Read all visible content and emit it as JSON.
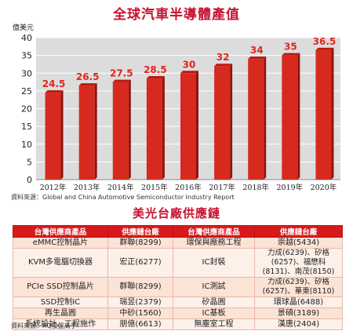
{
  "chart_data": {
    "type": "bar",
    "title": "全球汽車半導體產值",
    "ylabel": "億美元",
    "categories": [
      "2012年",
      "2013年",
      "2014年",
      "2015年",
      "2016年",
      "2017年",
      "2018年",
      "2019年",
      "2020年"
    ],
    "values": [
      24.5,
      26.5,
      27.5,
      28.5,
      30,
      32,
      34,
      35,
      36.5
    ],
    "data_labels": [
      "24.5",
      "26.5",
      "27.5",
      "28.5",
      "30",
      "32",
      "34",
      "35",
      "36.5"
    ],
    "yticks": [
      0,
      5,
      10,
      15,
      20,
      25,
      30,
      35,
      40
    ],
    "ylim": [
      0,
      40
    ],
    "grid": true,
    "colors": {
      "bar": "#d62a1e",
      "bar_dark": "#8f130d",
      "label": "#e1261c",
      "plot_bg": "#dcdcdc"
    }
  },
  "chart_source": "資料來源：Global and China Automotive Semiconductor Industry Report",
  "supply_chain": {
    "title": "美光台廠供應鏈",
    "headers": [
      "台灣供應商產品",
      "供應鏈台廠",
      "台灣供應商產品",
      "供應鏈台廠"
    ],
    "rows": [
      [
        "eMMC控制晶片",
        "群聯(8299)",
        "環保與廠務工程",
        "崇越(5434)"
      ],
      [
        "KVM多電腦切換器",
        "宏正(6277)",
        "IC封裝",
        "力成(6239)、矽格(6257)、福懋科(8131)、南茂(8150)"
      ],
      [
        "PCIe SSD控制晶片",
        "群聯(8299)",
        "IC測試",
        "力成(6239)、矽格(6257)、華東(8110)"
      ],
      [
        "SSD控制IC",
        "瑞昱(2379)",
        "矽晶圓",
        "環球晶(6488)"
      ],
      [
        "再生晶圓",
        "中砂(1560)",
        "IC基板",
        "景碩(3189)"
      ],
      [
        "系統設計、工程施作",
        "朋億(6613)",
        "無塵室工程",
        "漢唐(2404)"
      ]
    ]
  },
  "table_source": "資料來源：XQ操盤高手"
}
